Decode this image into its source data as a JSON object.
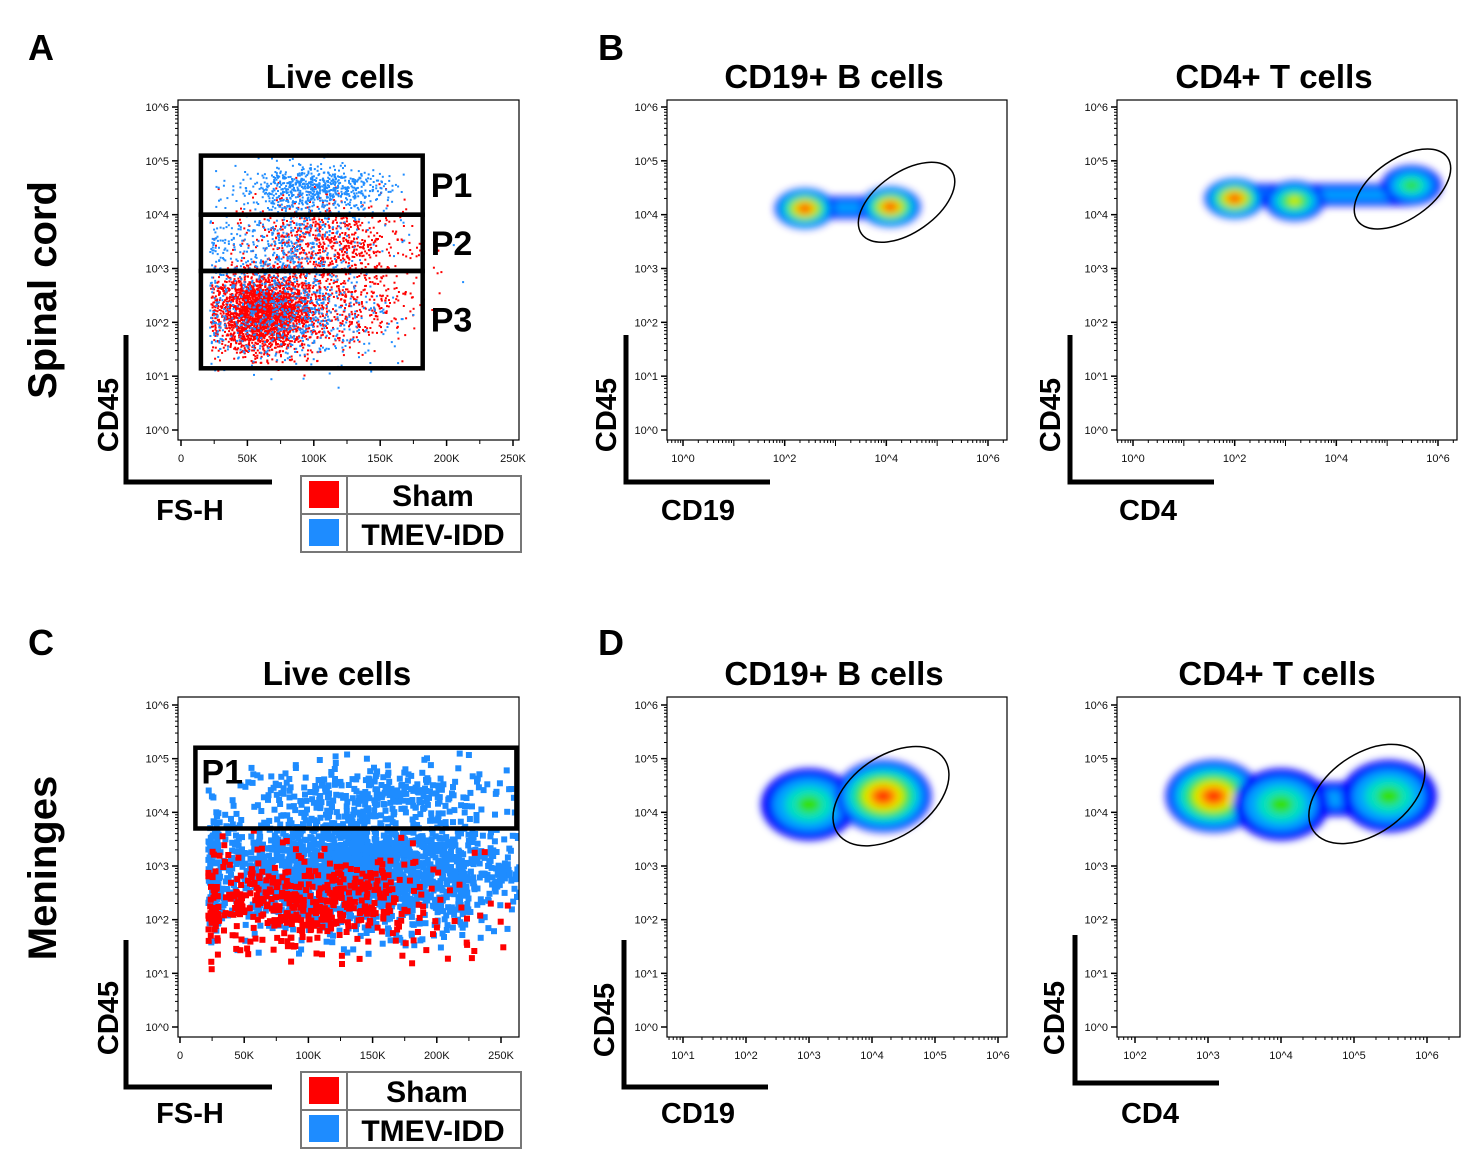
{
  "panels": {
    "A": {
      "letter": "A",
      "title": "Live cells",
      "row_label": "Spinal cord",
      "xlabel": "FS-H",
      "ylabel": "CD45",
      "gates": [
        {
          "label": "P1",
          "x": [
            15000,
            182000
          ],
          "y": [
            10000,
            125000
          ]
        },
        {
          "label": "P2",
          "x": [
            15000,
            182000
          ],
          "y": [
            900,
            10000
          ]
        },
        {
          "label": "P3",
          "x": [
            15000,
            182000
          ],
          "y": [
            14,
            900
          ]
        }
      ]
    },
    "B": {
      "letter": "B",
      "left": {
        "title": "CD19+ B cells",
        "xlabel": "CD19",
        "ylabel": "CD45"
      },
      "right": {
        "title": "CD4+ T cells",
        "xlabel": "CD4",
        "ylabel": "CD45"
      }
    },
    "C": {
      "letter": "C",
      "title": "Live cells",
      "row_label": "Meninges",
      "xlabel": "FS-H",
      "ylabel": "CD45",
      "gates": [
        {
          "label": "P1",
          "x": [
            12000,
            262000
          ],
          "y": [
            5000,
            160000
          ]
        }
      ]
    },
    "D": {
      "letter": "D",
      "left": {
        "title": "CD19+ B cells",
        "xlabel": "CD19",
        "ylabel": "CD45"
      },
      "right": {
        "title": "CD4+ T cells",
        "xlabel": "CD4",
        "ylabel": "CD45"
      }
    }
  },
  "legend": {
    "items": [
      {
        "label": "Sham",
        "color": "#ff0000"
      },
      {
        "label": "TMEV-IDD",
        "color": "#1e8cff"
      }
    ]
  },
  "chart_data": [
    {
      "id": "A",
      "type": "scatter",
      "title": "Live cells",
      "xlabel": "FS-H",
      "ylabel": "CD45",
      "x_scale": "linear",
      "xlim": [
        0,
        260000
      ],
      "x_ticks": [
        "0",
        "50K",
        "100K",
        "150K",
        "200K",
        "250K"
      ],
      "y_scale": "log",
      "ylim": [
        1,
        1000000
      ],
      "y_ticks": [
        "10^0",
        "10^1",
        "10^2",
        "10^3",
        "10^4",
        "10^5",
        "10^6"
      ],
      "series": [
        {
          "name": "Sham",
          "color": "#ff0000",
          "clusters": [
            {
              "n": 2600,
              "x": 62000,
              "y": 150,
              "x_sd": 18000,
              "y_sd_decades": 0.35
            },
            {
              "n": 700,
              "x": 110000,
              "y": 3000,
              "x_sd": 30000,
              "y_sd_decades": 0.4
            },
            {
              "n": 400,
              "x": 120000,
              "y": 200,
              "x_sd": 28000,
              "y_sd_decades": 0.4
            }
          ]
        },
        {
          "name": "TMEV-IDD",
          "color": "#1e8cff",
          "clusters": [
            {
              "n": 700,
              "x": 100000,
              "y": 30000,
              "x_sd": 28000,
              "y_sd_decades": 0.2
            },
            {
              "n": 500,
              "x": 80000,
              "y": 2500,
              "x_sd": 35000,
              "y_sd_decades": 0.45
            },
            {
              "n": 700,
              "x": 80000,
              "y": 150,
              "x_sd": 35000,
              "y_sd_decades": 0.45
            }
          ]
        }
      ]
    },
    {
      "id": "B-left",
      "type": "density",
      "xlabel": "CD19",
      "ylabel": "CD45",
      "x_scale": "log",
      "y_scale": "log",
      "xlim": [
        1,
        1000000
      ],
      "ylim": [
        1,
        1000000
      ],
      "x_ticks": [
        "10^0",
        "10^2",
        "10^4",
        "10^6"
      ],
      "y_ticks": [
        "10^0",
        "10^1",
        "10^2",
        "10^3",
        "10^4",
        "10^5",
        "10^6"
      ],
      "populations": [
        {
          "x": 250,
          "y": 13000,
          "peak": 1.0
        },
        {
          "x": 12000,
          "y": 14000,
          "peak": 1.0
        }
      ],
      "gate": {
        "shape": "ellipse",
        "center": [
          25000,
          17000
        ]
      }
    },
    {
      "id": "B-right",
      "type": "density",
      "xlabel": "CD4",
      "ylabel": "CD45",
      "x_scale": "log",
      "y_scale": "log",
      "xlim": [
        1,
        1000000
      ],
      "ylim": [
        1,
        1000000
      ],
      "x_ticks": [
        "10^0",
        "10^2",
        "10^4",
        "10^6"
      ],
      "y_ticks": [
        "10^0",
        "10^1",
        "10^2",
        "10^3",
        "10^4",
        "10^5",
        "10^6"
      ],
      "populations": [
        {
          "x": 100,
          "y": 20000,
          "peak": 1.0
        },
        {
          "x": 1500,
          "y": 18000,
          "peak": 0.7
        },
        {
          "x": 300000,
          "y": 35000,
          "peak": 0.55
        }
      ],
      "gate": {
        "shape": "ellipse",
        "center": [
          200000,
          30000
        ]
      }
    },
    {
      "id": "C",
      "type": "scatter",
      "title": "Live cells",
      "xlabel": "FS-H",
      "ylabel": "CD45",
      "x_scale": "linear",
      "xlim": [
        0,
        265000
      ],
      "x_ticks": [
        "0",
        "50K",
        "100K",
        "150K",
        "200K",
        "250K"
      ],
      "y_scale": "log",
      "ylim": [
        1,
        1000000
      ],
      "y_ticks": [
        "10^0",
        "10^1",
        "10^2",
        "10^3",
        "10^4",
        "10^5",
        "10^6"
      ],
      "series": [
        {
          "name": "TMEV-IDD",
          "color": "#1e8cff",
          "clusters": [
            {
              "n": 2200,
              "x": 140000,
              "y": 800,
              "x_sd": 60000,
              "y_sd_decades": 0.55
            },
            {
              "n": 250,
              "x": 150000,
              "y": 25000,
              "x_sd": 60000,
              "y_sd_decades": 0.25
            }
          ]
        },
        {
          "name": "Sham",
          "color": "#ff0000",
          "clusters": [
            {
              "n": 500,
              "x": 100000,
              "y": 200,
              "x_sd": 55000,
              "y_sd_decades": 0.45
            }
          ]
        }
      ]
    },
    {
      "id": "D-left",
      "type": "density",
      "xlabel": "CD19",
      "ylabel": "CD45",
      "x_scale": "log",
      "y_scale": "log",
      "xlim": [
        6,
        1000000
      ],
      "ylim": [
        1,
        1000000
      ],
      "x_ticks": [
        "10^1",
        "10^2",
        "10^3",
        "10^4",
        "10^5",
        "10^6"
      ],
      "y_ticks": [
        "10^0",
        "10^1",
        "10^2",
        "10^3",
        "10^4",
        "10^5",
        "10^6"
      ],
      "populations": [
        {
          "x": 1000,
          "y": 14000,
          "peak": 0.6
        },
        {
          "x": 15000,
          "y": 20000,
          "peak": 1.0
        }
      ],
      "gate": {
        "shape": "ellipse",
        "center": [
          20000,
          20000
        ]
      }
    },
    {
      "id": "D-right",
      "type": "density",
      "xlabel": "CD4",
      "ylabel": "CD45",
      "x_scale": "log",
      "y_scale": "log",
      "xlim": [
        70,
        1400000
      ],
      "ylim": [
        1,
        1000000
      ],
      "x_ticks": [
        "10^2",
        "10^3",
        "10^4",
        "10^5",
        "10^6"
      ],
      "y_ticks": [
        "10^0",
        "10^1",
        "10^2",
        "10^3",
        "10^4",
        "10^5",
        "10^6"
      ],
      "populations": [
        {
          "x": 1200,
          "y": 20000,
          "peak": 1.0
        },
        {
          "x": 10000,
          "y": 14000,
          "peak": 0.55
        },
        {
          "x": 300000,
          "y": 20000,
          "peak": 0.5
        }
      ],
      "gate": {
        "shape": "ellipse",
        "center": [
          150000,
          22000
        ]
      }
    }
  ]
}
